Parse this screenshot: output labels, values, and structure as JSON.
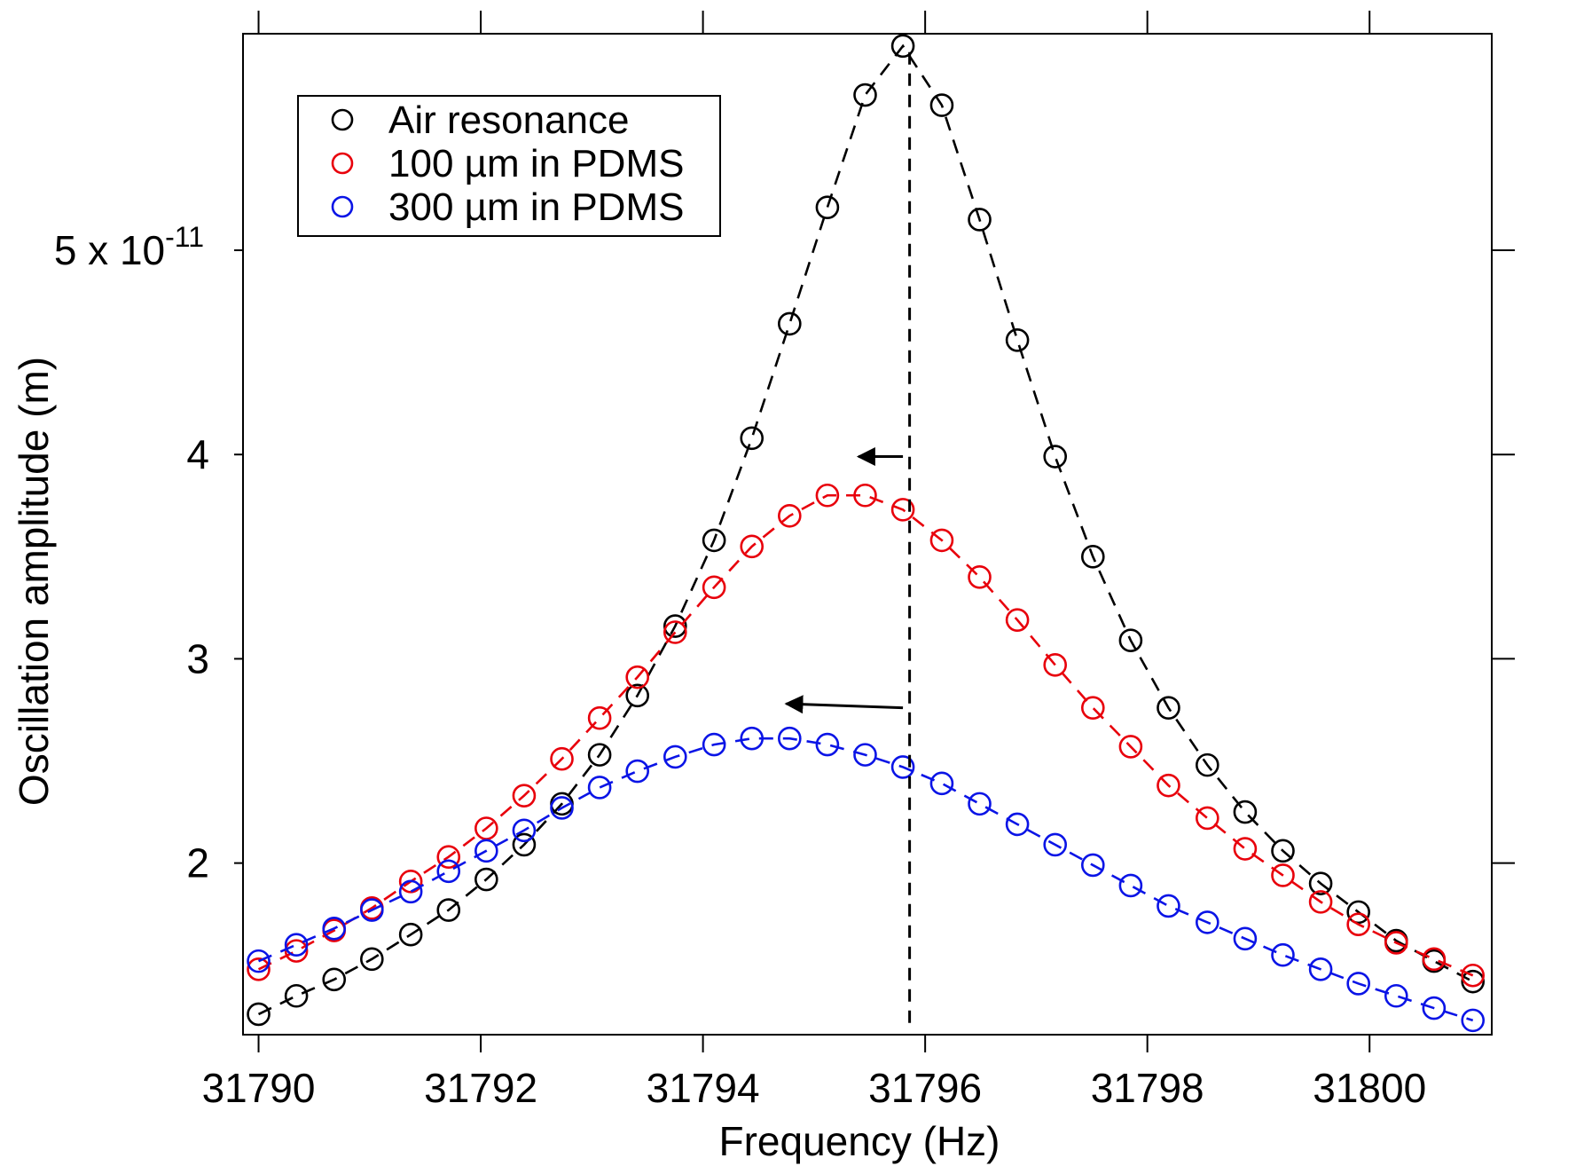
{
  "chart_data": {
    "type": "scatter",
    "xlabel": "Frequency (Hz)",
    "ylabel": "Oscillation amplitude (m)",
    "xlim": [
      31789.86,
      31801.1
    ],
    "ylim": [
      1.16e-11,
      6.06e-11
    ],
    "x_ticks": [
      {
        "value": 31790,
        "label": "31790"
      },
      {
        "value": 31792,
        "label": "31792"
      },
      {
        "value": 31794,
        "label": "31794"
      },
      {
        "value": 31796,
        "label": "31796"
      },
      {
        "value": 31798,
        "label": "31798"
      },
      {
        "value": 31800,
        "label": "31800"
      }
    ],
    "y_ticks": [
      {
        "value": 2e-11,
        "label": "2"
      },
      {
        "value": 3e-11,
        "label": "3"
      },
      {
        "value": 4e-11,
        "label": "4"
      },
      {
        "value": 5e-11,
        "label": "5 x 10",
        "exponent": "-11"
      }
    ],
    "legend": {
      "position": "top-left"
    },
    "vline": {
      "x": 31795.86,
      "style": "dashed",
      "color": "#000000"
    },
    "annotations": [
      {
        "type": "arrow",
        "from": [
          31795.8,
          3.99e-11
        ],
        "to": [
          31795.4,
          3.99e-11
        ]
      },
      {
        "type": "arrow",
        "from": [
          31795.8,
          2.76e-11
        ],
        "to": [
          31794.75,
          2.78e-11
        ]
      }
    ],
    "series": [
      {
        "name": "Air resonance",
        "color": "#000000",
        "x": [
          31790.0,
          31790.34,
          31790.68,
          31791.02,
          31791.37,
          31791.71,
          31792.05,
          31792.39,
          31792.73,
          31793.07,
          31793.41,
          31793.75,
          31794.1,
          31794.44,
          31794.78,
          31795.12,
          31795.46,
          31795.8,
          31796.15,
          31796.49,
          31796.83,
          31797.17,
          31797.51,
          31797.85,
          31798.19,
          31798.54,
          31798.88,
          31799.22,
          31799.56,
          31799.9,
          31800.24,
          31800.58,
          31800.93
        ],
        "y": [
          1.26e-11,
          1.35e-11,
          1.43e-11,
          1.53e-11,
          1.65e-11,
          1.77e-11,
          1.92e-11,
          2.09e-11,
          2.29e-11,
          2.53e-11,
          2.82e-11,
          3.16e-11,
          3.58e-11,
          4.08e-11,
          4.64e-11,
          5.21e-11,
          5.76e-11,
          6e-11,
          5.71e-11,
          5.15e-11,
          4.56e-11,
          3.99e-11,
          3.5e-11,
          3.09e-11,
          2.76e-11,
          2.48e-11,
          2.25e-11,
          2.06e-11,
          1.9e-11,
          1.76e-11,
          1.62e-11,
          1.52e-11,
          1.42e-11
        ]
      },
      {
        "name": "100 µm in PDMS",
        "color": "#e8000b",
        "x": [
          31790.0,
          31790.34,
          31790.68,
          31791.02,
          31791.37,
          31791.71,
          31792.05,
          31792.39,
          31792.73,
          31793.07,
          31793.41,
          31793.75,
          31794.1,
          31794.44,
          31794.78,
          31795.12,
          31795.46,
          31795.8,
          31796.15,
          31796.49,
          31796.83,
          31797.17,
          31797.51,
          31797.85,
          31798.19,
          31798.54,
          31798.88,
          31799.22,
          31799.56,
          31799.9,
          31800.24,
          31800.58,
          31800.93
        ],
        "y": [
          1.48e-11,
          1.57e-11,
          1.67e-11,
          1.78e-11,
          1.91e-11,
          2.03e-11,
          2.17e-11,
          2.33e-11,
          2.51e-11,
          2.71e-11,
          2.91e-11,
          3.13e-11,
          3.35e-11,
          3.55e-11,
          3.7e-11,
          3.8e-11,
          3.8e-11,
          3.73e-11,
          3.58e-11,
          3.4e-11,
          3.19e-11,
          2.97e-11,
          2.76e-11,
          2.57e-11,
          2.38e-11,
          2.22e-11,
          2.07e-11,
          1.94e-11,
          1.81e-11,
          1.7e-11,
          1.61e-11,
          1.53e-11,
          1.45e-11
        ]
      },
      {
        "name": "300 µm in PDMS",
        "color": "#0a14e6",
        "x": [
          31790.0,
          31790.34,
          31790.68,
          31791.02,
          31791.37,
          31791.71,
          31792.05,
          31792.39,
          31792.73,
          31793.07,
          31793.41,
          31793.75,
          31794.1,
          31794.44,
          31794.78,
          31795.12,
          31795.46,
          31795.8,
          31796.15,
          31796.49,
          31796.83,
          31797.17,
          31797.51,
          31797.85,
          31798.19,
          31798.54,
          31798.88,
          31799.22,
          31799.56,
          31799.9,
          31800.24,
          31800.58,
          31800.93
        ],
        "y": [
          1.52e-11,
          1.6e-11,
          1.68e-11,
          1.77e-11,
          1.86e-11,
          1.96e-11,
          2.06e-11,
          2.16e-11,
          2.27e-11,
          2.37e-11,
          2.45e-11,
          2.52e-11,
          2.58e-11,
          2.61e-11,
          2.61e-11,
          2.58e-11,
          2.53e-11,
          2.47e-11,
          2.39e-11,
          2.29e-11,
          2.19e-11,
          2.09e-11,
          1.99e-11,
          1.89e-11,
          1.79e-11,
          1.71e-11,
          1.63e-11,
          1.55e-11,
          1.48e-11,
          1.41e-11,
          1.35e-11,
          1.29e-11,
          1.23e-11
        ]
      }
    ]
  }
}
